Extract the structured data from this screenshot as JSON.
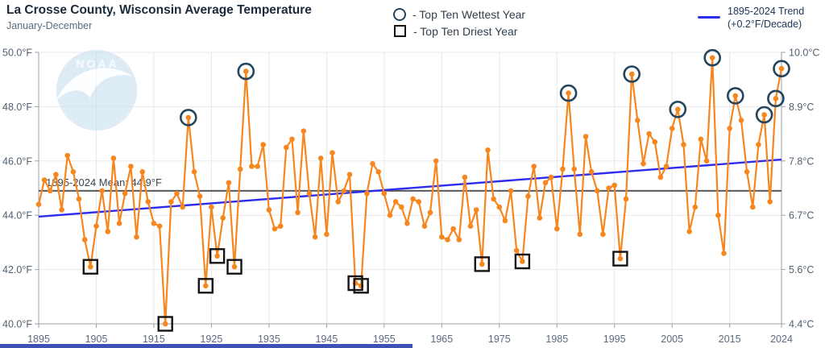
{
  "header": {
    "title": "La Crosse County, Wisconsin Average Temperature",
    "subtitle": "January-December"
  },
  "legend": {
    "wettest_label": "- Top Ten Wettest Year",
    "driest_label": "- Top Ten Driest Year",
    "trend_label_line1": "1895-2024 Trend",
    "trend_label_line2": "(+0.2°F/Decade)"
  },
  "mean_line": {
    "label": "1895-2024 Mean: 44.9°F",
    "value_f": 44.9
  },
  "trend": {
    "start_f": 43.95,
    "end_f": 46.05,
    "rate_label": "+0.2°F/Decade"
  },
  "watermark": {
    "text": "NOAA"
  },
  "colors": {
    "orange": "#F6871F",
    "trend": "#2D2DF0",
    "ring": "#24455C",
    "square": "#141414",
    "mean": "#58595B",
    "grid": "#E8E8E8",
    "axis": "#9AA0A6",
    "tick_label": "#51606F",
    "x_label": "#5B6B7C",
    "mean_label": "#3C4650",
    "logo": "#C8DFF0",
    "footer": "#3F51B5"
  },
  "chart_data": {
    "type": "line",
    "title": "La Crosse County, Wisconsin Average Temperature",
    "subtitle": "January-December",
    "x_start_year": 1895,
    "x_end_year": 2024,
    "ylim_f": [
      40.0,
      50.0
    ],
    "ylim_c": [
      4.4,
      10.0
    ],
    "mean_f": 44.9,
    "trend_per_decade_f": 0.2,
    "grid": true,
    "y_axis_left_ticks": [
      "50.0°F",
      "48.0°F",
      "46.0°F",
      "44.0°F",
      "42.0°F",
      "40.0°F"
    ],
    "y_axis_left_values": [
      50,
      48,
      46,
      44,
      42,
      40
    ],
    "y_axis_right_ticks": [
      "10.0°C",
      "8.9°C",
      "7.8°C",
      "6.7°C",
      "5.6°C",
      "4.4°C"
    ],
    "x_ticks": [
      "1895",
      "1905",
      "1915",
      "1925",
      "1935",
      "1945",
      "1955",
      "1965",
      "1975",
      "1985",
      "1995",
      "2005",
      "2015",
      "2024"
    ],
    "values_f": [
      44.4,
      45.3,
      44.9,
      45.5,
      44.2,
      46.2,
      45.6,
      44.6,
      43.1,
      42.1,
      43.6,
      44.9,
      43.4,
      46.1,
      43.7,
      44.8,
      45.8,
      43.2,
      45.6,
      44.5,
      43.7,
      43.6,
      40.0,
      44.5,
      44.8,
      44.3,
      47.6,
      45.6,
      44.7,
      41.4,
      44.3,
      42.5,
      43.9,
      45.2,
      42.1,
      45.7,
      49.3,
      45.8,
      45.8,
      46.6,
      44.2,
      43.5,
      43.6,
      46.5,
      46.8,
      44.1,
      47.1,
      44.8,
      43.2,
      46.1,
      43.3,
      46.3,
      44.5,
      44.9,
      45.5,
      41.5,
      41.4,
      44.8,
      45.9,
      45.6,
      44.8,
      44.0,
      44.5,
      44.3,
      43.7,
      44.6,
      44.5,
      43.6,
      44.1,
      46.0,
      43.2,
      43.1,
      43.5,
      43.1,
      45.4,
      43.6,
      44.2,
      42.2,
      46.4,
      44.6,
      44.3,
      43.8,
      44.9,
      42.7,
      42.3,
      44.7,
      45.8,
      43.9,
      45.2,
      45.4,
      43.5,
      45.7,
      48.5,
      45.7,
      43.3,
      46.9,
      45.6,
      44.9,
      43.3,
      45.0,
      45.1,
      42.4,
      44.6,
      49.2,
      47.5,
      45.9,
      47.0,
      46.7,
      45.4,
      45.8,
      47.2,
      47.9,
      46.6,
      43.4,
      44.3,
      46.8,
      46.0,
      49.8,
      44.0,
      42.6,
      47.2,
      48.4,
      47.5,
      45.6,
      44.3,
      46.6,
      47.7,
      44.5,
      48.3,
      49.4
    ],
    "wettest_years": [
      1921,
      1931,
      1987,
      1998,
      2006,
      2012,
      2016,
      2021,
      2023,
      2024
    ],
    "driest_years": [
      1904,
      1917,
      1924,
      1926,
      1929,
      1950,
      1951,
      1972,
      1979,
      1996
    ]
  }
}
